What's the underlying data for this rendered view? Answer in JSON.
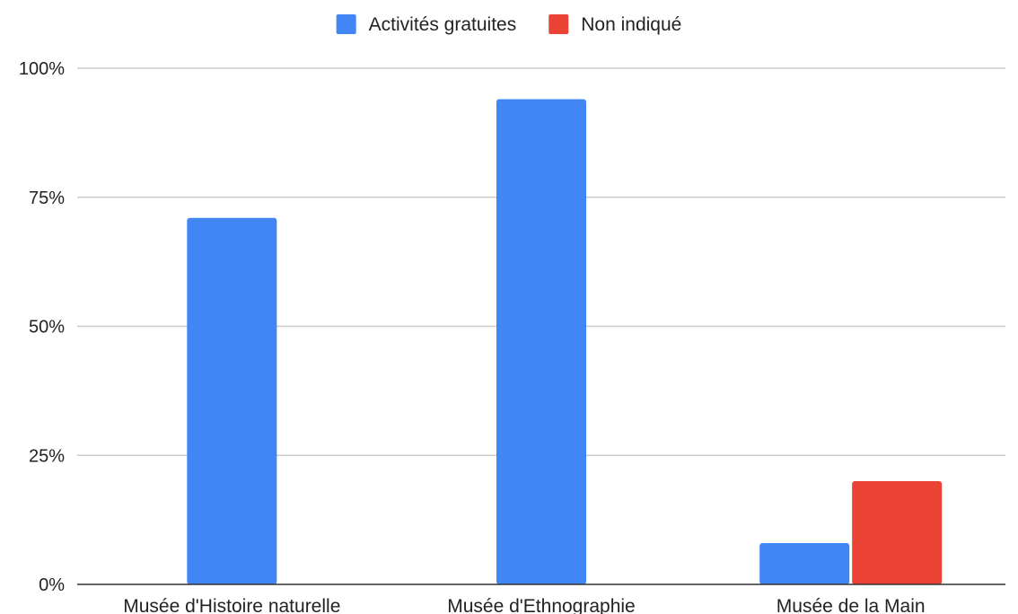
{
  "chart_data": {
    "type": "bar",
    "categories": [
      "Musée d'Histoire naturelle",
      "Musée d'Ethnographie",
      "Musée de la Main"
    ],
    "series": [
      {
        "name": "Activités gratuites",
        "values": [
          71,
          94,
          8
        ],
        "color": "#4285f4"
      },
      {
        "name": "Non indiqué",
        "values": [
          0,
          0,
          20
        ],
        "color": "#ea4335"
      }
    ],
    "y_ticks": [
      "0%",
      "25%",
      "50%",
      "75%",
      "100%"
    ],
    "ylim": [
      0,
      100
    ],
    "y_unit": "%",
    "grid": true,
    "legend_position": "top-center"
  }
}
